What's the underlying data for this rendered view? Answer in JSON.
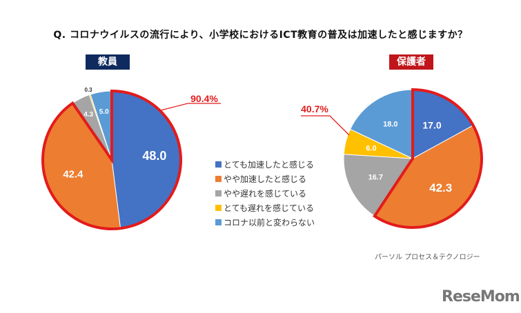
{
  "title": "Q. コロナウイルスの流行により、小学校におけるICT教育の普及は加速したと感じますか？",
  "source": "パーソル プロセス＆テクノロジー",
  "logo": "ReseMom",
  "colors": {
    "very_accelerated": "#4472C4",
    "somewhat_accelerated": "#ED7D31",
    "somewhat_delayed": "#A5A5A5",
    "very_delayed": "#FFC000",
    "unchanged": "#5B9BD5",
    "highlight": "#E31B1B",
    "badge_teacher": "#0F2A5E",
    "badge_parent": "#C0161B"
  },
  "chart_data": [
    {
      "type": "pie",
      "title": "教員",
      "categories": [
        "とても加速したと感じる",
        "やや加速したと感じる",
        "やや遅れを感じている",
        "とても遅れを感じている",
        "コロナ以前と変わらない"
      ],
      "values": [
        48.0,
        42.4,
        4.3,
        0.3,
        5.0
      ],
      "labels": [
        "48.0",
        "42.4",
        "4.3",
        "0.3",
        "5.0"
      ],
      "highlight_total": "90.4%"
    },
    {
      "type": "pie",
      "title": "保護者",
      "categories": [
        "とても加速したと感じる",
        "やや加速したと感じる",
        "やや遅れを感じている",
        "とても遅れを感じている",
        "コロナ以前と変わらない"
      ],
      "values": [
        17.0,
        42.3,
        16.7,
        6.0,
        18.0
      ],
      "labels": [
        "17.0",
        "42.3",
        "16.7",
        "6.0",
        "18.0"
      ],
      "highlight_total": "40.7%"
    }
  ],
  "legend": [
    "とても加速したと感じる",
    "やや加速したと感じる",
    " やや遅れを感じている",
    "とても遅れを感じている",
    "コロナ以前と変わらない"
  ]
}
